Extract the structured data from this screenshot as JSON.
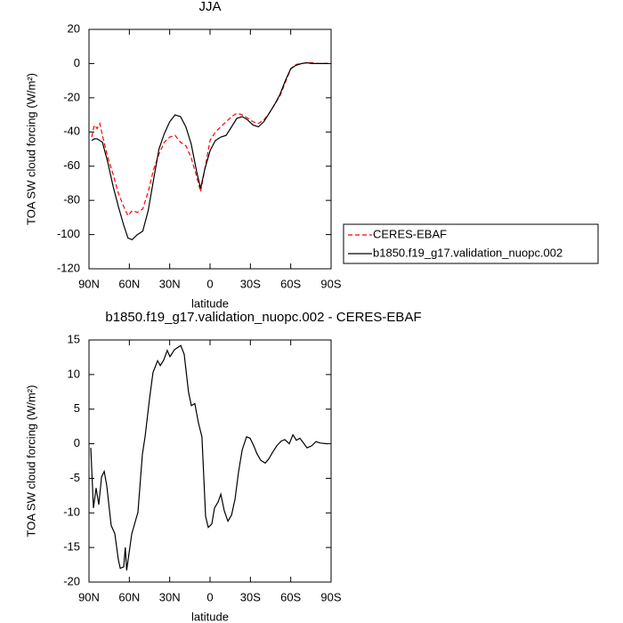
{
  "chart_data": [
    {
      "type": "line",
      "title": "JJA",
      "xlabel": "latitude",
      "ylabel": "TOA SW cloud forcing (W/m²)",
      "x": [
        88,
        86,
        84,
        82,
        80,
        76,
        72,
        68,
        64,
        61,
        58,
        54,
        50,
        46,
        42,
        38,
        34,
        30,
        26,
        22,
        18,
        14,
        10,
        7,
        4,
        0,
        -4,
        -8,
        -12,
        -16,
        -20,
        -24,
        -28,
        -32,
        -36,
        -40,
        -44,
        -48,
        -52,
        -56,
        -60,
        -64,
        -68,
        -72,
        -76,
        -80,
        -84,
        -88
      ],
      "series": [
        {
          "name": "CERES-EBAF",
          "color": "#ff0000",
          "dash": "dashed",
          "values": [
            -43,
            -36,
            -38,
            -35,
            -42,
            -55,
            -65,
            -76,
            -84,
            -89,
            -86,
            -87,
            -85,
            -75,
            -62,
            -53,
            -46,
            -43,
            -42,
            -46,
            -48,
            -55,
            -66,
            -75,
            -62,
            -45,
            -40,
            -37,
            -34,
            -31,
            -29,
            -30,
            -32,
            -34,
            -35,
            -33,
            -29,
            -24,
            -19,
            -11,
            -3,
            -0.5,
            0,
            0.5,
            0.5,
            0,
            0,
            0
          ]
        },
        {
          "name": "b1850.f19_g17.validation_nuopc.002",
          "color": "#000000",
          "dash": "solid",
          "values": [
            -45,
            -44,
            -44,
            -45,
            -46,
            -58,
            -72,
            -84,
            -95,
            -102,
            -103,
            -100,
            -98,
            -86,
            -68,
            -50,
            -41,
            -34,
            -30,
            -31,
            -37,
            -47,
            -63,
            -73,
            -62,
            -51,
            -45,
            -43,
            -42,
            -37,
            -32,
            -31,
            -33,
            -36,
            -37,
            -34,
            -29,
            -24,
            -18,
            -10,
            -3,
            -1,
            0,
            0.5,
            0,
            0,
            0,
            0
          ]
        }
      ],
      "xlim": [
        90,
        -90
      ],
      "xticks": [
        {
          "value": 90,
          "label": "90N"
        },
        {
          "value": 60,
          "label": "60N"
        },
        {
          "value": 30,
          "label": "30N"
        },
        0,
        {
          "value": -30,
          "label": "30S"
        },
        {
          "value": -60,
          "label": "60S"
        },
        {
          "value": -90,
          "label": "90S"
        }
      ],
      "ylim": [
        -120,
        20
      ],
      "yticks": [
        -120,
        -100,
        -80,
        -60,
        -40,
        -20,
        0,
        20
      ],
      "legend": "outside-lower-right"
    },
    {
      "type": "line",
      "title": "b1850.f19_g17.validation_nuopc.002 - CERES-EBAF",
      "xlabel": "latitude",
      "ylabel": "TOA SW cloud forcing (W/m²)",
      "x": [
        88.7,
        86.7,
        84.7,
        82.7,
        80.7,
        78.7,
        76.8,
        73.5,
        70.8,
        68.2,
        66.8,
        64.2,
        63,
        62,
        58.2,
        53.6,
        50.3,
        48.3,
        45,
        42.4,
        39,
        37,
        34.4,
        31.8,
        29.8,
        26.5,
        21.8,
        19.2,
        16,
        13.9,
        11.3,
        8.6,
        6,
        3.3,
        1.3,
        -1.3,
        -3.3,
        -6,
        -8,
        -10.6,
        -13.3,
        -16,
        -18.6,
        -21.2,
        -23.9,
        -27.1,
        -29.8,
        -32.5,
        -35,
        -37.7,
        -41,
        -43.7,
        -46.3,
        -49.6,
        -53,
        -55.6,
        -58.9,
        -61.6,
        -64.2,
        -66.8,
        -69.5,
        -72.1,
        -75.5,
        -78.8,
        -82,
        -87.4
      ],
      "series": [
        {
          "name": null,
          "color": "#000000",
          "dash": "solid",
          "values": [
            -0.6,
            -9.3,
            -6.4,
            -8.8,
            -4.8,
            -4,
            -6,
            -11.8,
            -13,
            -16.7,
            -18,
            -17.8,
            -15,
            -18.3,
            -13,
            -9.9,
            -1.5,
            1,
            6.5,
            10.3,
            12,
            11.3,
            12.1,
            13.5,
            12.6,
            13.6,
            14.2,
            12.9,
            7.5,
            5.5,
            5.8,
            3,
            1,
            -10.5,
            -12.1,
            -11.6,
            -9.3,
            -8.4,
            -7.3,
            -9.7,
            -11.2,
            -10.3,
            -8,
            -4.1,
            -0.9,
            1,
            0.8,
            -0.3,
            -1.5,
            -2.4,
            -2.8,
            -2.2,
            -1.3,
            -0.3,
            0.4,
            0.6,
            0,
            1.3,
            0.5,
            0.8,
            0.1,
            -0.6,
            -0.3,
            0.3,
            0.1,
            0
          ]
        }
      ],
      "xlim": [
        90,
        -90
      ],
      "xticks": [
        {
          "value": 90,
          "label": "90N"
        },
        {
          "value": 60,
          "label": "60N"
        },
        {
          "value": 30,
          "label": "30N"
        },
        0,
        {
          "value": -30,
          "label": "30S"
        },
        {
          "value": -60,
          "label": "60S"
        },
        {
          "value": -90,
          "label": "90S"
        }
      ],
      "ylim": [
        -20,
        15
      ],
      "yticks": [
        -20,
        -15,
        -10,
        -5,
        0,
        5,
        10,
        15
      ]
    }
  ]
}
